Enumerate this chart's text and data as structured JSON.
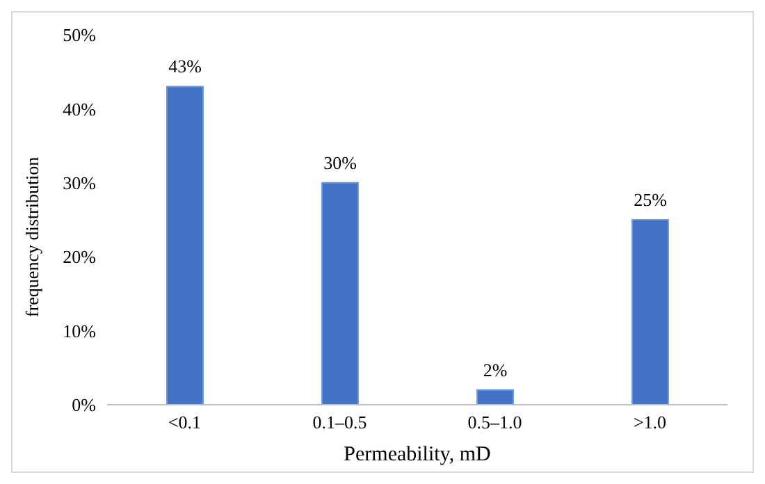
{
  "chart_data": {
    "type": "bar",
    "xlabel": "Permeability, mD",
    "ylabel": "frequency distribution",
    "categories": [
      "<0.1",
      "0.1–0.5",
      "0.5–1.0",
      ">1.0"
    ],
    "values": [
      43,
      30,
      2,
      25
    ],
    "color": "#4472c4",
    "value_labels": [
      "43%",
      "30%",
      "2%",
      "25%"
    ],
    "ylim": [
      0,
      50
    ],
    "yticks": [
      {
        "value": 0,
        "label": "0%"
      },
      {
        "value": 10,
        "label": "10%"
      },
      {
        "value": 20,
        "label": "20%"
      },
      {
        "value": 30,
        "label": "30%"
      },
      {
        "value": 40,
        "label": "40%"
      },
      {
        "value": 50,
        "label": "50%"
      }
    ],
    "grid": false
  }
}
